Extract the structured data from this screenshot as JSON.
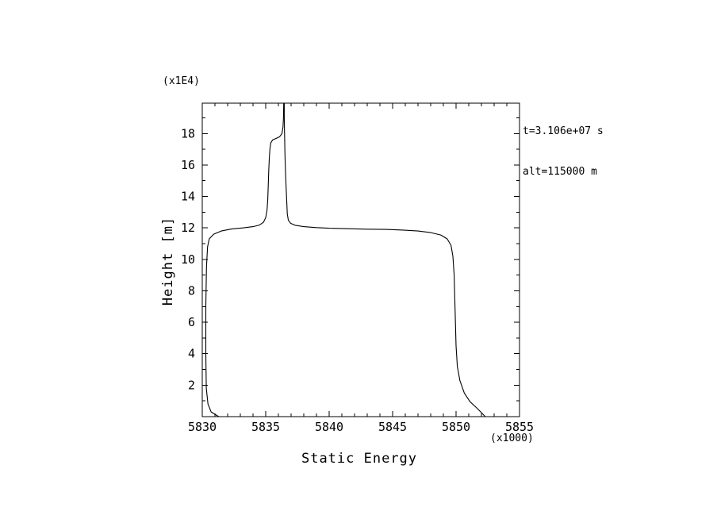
{
  "page": {
    "background": "#ffffff"
  },
  "annotations": {
    "time": "t=3.106e+07 s",
    "altitude": "alt=115000 m"
  },
  "chart_data": {
    "type": "line",
    "title": "",
    "xlabel": "Static Energy",
    "ylabel": "Height [m]",
    "x_unit_label": "(x1000)",
    "y_unit_label": "(x1E4)",
    "xlim": [
      5830,
      5855
    ],
    "ylim": [
      0,
      19.93
    ],
    "x_major_ticks": [
      5830,
      5835,
      5840,
      5845,
      5850,
      5855
    ],
    "x_minor_step": 1,
    "y_major_ticks": [
      2,
      4,
      6,
      8,
      10,
      12,
      14,
      16,
      18
    ],
    "y_minor_step": 1,
    "grid": false,
    "line_color": "#000000",
    "frame_color": "#000000",
    "series": [
      {
        "name": "left-profile",
        "points": [
          [
            5831.3,
            0.0
          ],
          [
            5830.7,
            0.3
          ],
          [
            5830.45,
            0.8
          ],
          [
            5830.32,
            1.8
          ],
          [
            5830.28,
            4.0
          ],
          [
            5830.28,
            7.0
          ],
          [
            5830.33,
            9.5
          ],
          [
            5830.42,
            10.8
          ],
          [
            5830.55,
            11.3
          ],
          [
            5830.9,
            11.6
          ],
          [
            5831.5,
            11.8
          ],
          [
            5832.3,
            11.93
          ],
          [
            5833.2,
            12.0
          ],
          [
            5834.0,
            12.08
          ],
          [
            5834.5,
            12.18
          ],
          [
            5834.82,
            12.35
          ],
          [
            5835.0,
            12.65
          ],
          [
            5835.1,
            13.1
          ],
          [
            5835.16,
            13.8
          ],
          [
            5835.2,
            14.7
          ],
          [
            5835.24,
            15.6
          ],
          [
            5835.28,
            16.4
          ],
          [
            5835.33,
            17.0
          ],
          [
            5835.4,
            17.4
          ],
          [
            5835.55,
            17.6
          ],
          [
            5835.85,
            17.7
          ],
          [
            5836.1,
            17.8
          ],
          [
            5836.28,
            18.0
          ],
          [
            5836.36,
            18.4
          ],
          [
            5836.4,
            19.0
          ],
          [
            5836.42,
            19.93
          ]
        ]
      },
      {
        "name": "right-profile",
        "points": [
          [
            5836.46,
            19.93
          ],
          [
            5836.46,
            19.0
          ],
          [
            5836.48,
            18.2
          ],
          [
            5836.5,
            17.4
          ],
          [
            5836.52,
            16.6
          ],
          [
            5836.55,
            15.8
          ],
          [
            5836.58,
            15.1
          ],
          [
            5836.62,
            14.4
          ],
          [
            5836.66,
            13.6
          ],
          [
            5836.7,
            12.9
          ],
          [
            5836.78,
            12.5
          ],
          [
            5836.95,
            12.3
          ],
          [
            5837.3,
            12.17
          ],
          [
            5838.0,
            12.08
          ],
          [
            5839.0,
            12.02
          ],
          [
            5840.0,
            11.98
          ],
          [
            5841.5,
            11.95
          ],
          [
            5843.0,
            11.92
          ],
          [
            5844.5,
            11.9
          ],
          [
            5845.8,
            11.86
          ],
          [
            5847.0,
            11.8
          ],
          [
            5848.0,
            11.7
          ],
          [
            5848.8,
            11.55
          ],
          [
            5849.3,
            11.3
          ],
          [
            5849.6,
            10.9
          ],
          [
            5849.75,
            10.2
          ],
          [
            5849.85,
            9.0
          ],
          [
            5849.9,
            7.5
          ],
          [
            5849.95,
            6.0
          ],
          [
            5850.0,
            4.5
          ],
          [
            5850.1,
            3.2
          ],
          [
            5850.3,
            2.3
          ],
          [
            5850.65,
            1.5
          ],
          [
            5851.1,
            0.95
          ],
          [
            5851.7,
            0.5
          ],
          [
            5852.3,
            0.0
          ]
        ]
      }
    ]
  }
}
